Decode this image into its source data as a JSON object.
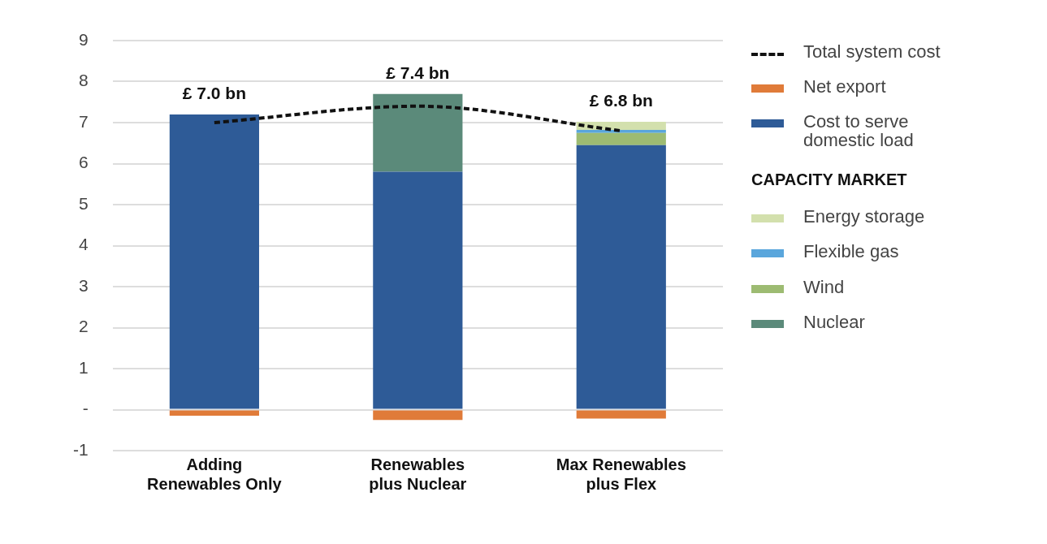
{
  "chart_data": {
    "type": "bar",
    "stacked": true,
    "categories": [
      "Adding Renewables Only",
      "Renewables plus Nuclear",
      "Max Renewables plus Flex"
    ],
    "series": [
      {
        "name": "Net export",
        "color": "#e07b39",
        "values": [
          -0.15,
          -0.25,
          -0.22
        ]
      },
      {
        "name": "Cost to serve domestic load",
        "color": "#2e5b97",
        "values": [
          7.2,
          5.8,
          6.45
        ]
      },
      {
        "name": "Nuclear",
        "color": "#5b8a7a",
        "values": [
          null,
          1.9,
          null
        ]
      },
      {
        "name": "Wind",
        "color": "#9dbb72",
        "values": [
          null,
          null,
          0.3
        ]
      },
      {
        "name": "Flexible gas",
        "color": "#5aa6dc",
        "values": [
          null,
          null,
          0.07
        ]
      },
      {
        "name": "Energy storage",
        "color": "#d3e0ad",
        "values": [
          null,
          null,
          0.2
        ]
      },
      {
        "name": "Total system cost",
        "type": "line",
        "color": "#111111",
        "line_style": "dashed",
        "marker": "none",
        "values": [
          7.0,
          7.4,
          6.8
        ],
        "value_labels": [
          "£ 7.0 bn",
          "£ 7.4 bn",
          "£ 6.8 bn"
        ]
      }
    ],
    "legend_title": "CAPACITY MARKET",
    "legend": "right",
    "ylim": [
      -1,
      9
    ],
    "yticks": [
      -1,
      {
        "value": 0,
        "label": "-"
      },
      1,
      2,
      3,
      4,
      5,
      6,
      7,
      8,
      9
    ],
    "grid": "y"
  }
}
